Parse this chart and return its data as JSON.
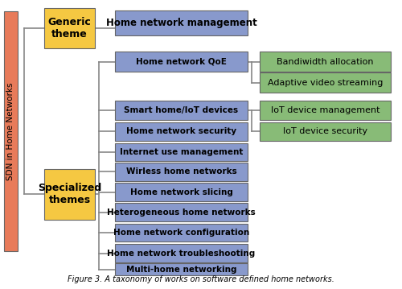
{
  "title": "Figure 3. A taxonomy of works on software defined home networks.",
  "root_label": "SDN in Home Networks",
  "root_color": "#E87B5A",
  "level1_color": "#F5C842",
  "level2_color": "#8899CC",
  "level3_color": "#88BB77",
  "generic_theme_label": "Generic\ntheme",
  "specialized_themes_label": "Specialized\nthemes",
  "generic_child": "Home network management",
  "specialized_children": [
    "Home network QoE",
    "Smart home/IoT devices",
    "Home network security",
    "Internet use management",
    "Wirless home networks",
    "Home network slicing",
    "Heterogeneous home networks",
    "Home network configuration",
    "Home network troubleshooting",
    "Multi-home networking"
  ],
  "qoe_children": [
    "Bandiwidth allocation",
    "Adaptive video streaming"
  ],
  "iot_children": [
    "IoT device management",
    "IoT device security"
  ],
  "bg_color": "#FFFFFF",
  "border_color": "#666666",
  "line_color": "#888888"
}
